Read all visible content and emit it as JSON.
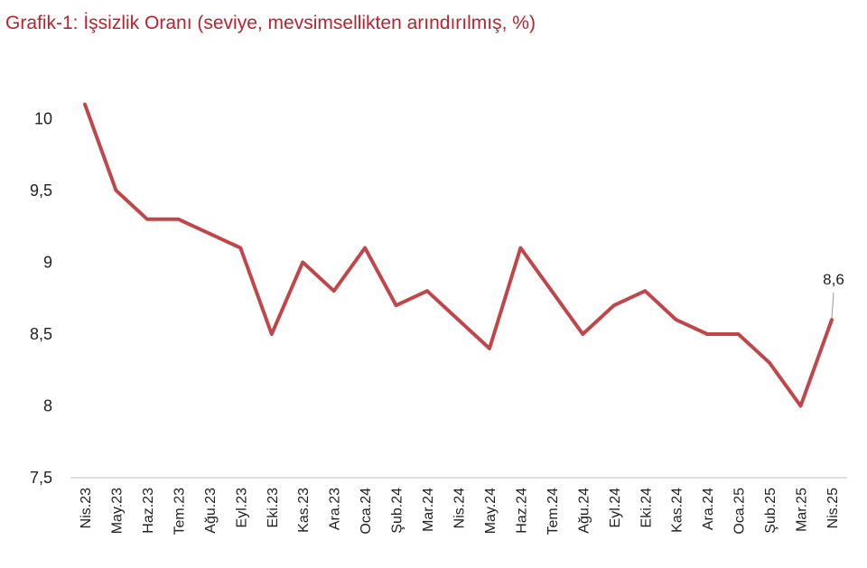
{
  "chart_data": {
    "type": "line",
    "title": "Grafik-1: İşsizlik Oranı (seviye, mevsimsellikten arındırılmış, %)",
    "xlabel": "",
    "ylabel": "",
    "ylim": [
      7.5,
      10.1
    ],
    "yticks": [
      {
        "value": 10,
        "label": "10"
      },
      {
        "value": 9.5,
        "label": "9,5"
      },
      {
        "value": 9,
        "label": "9"
      },
      {
        "value": 8.5,
        "label": "8,5"
      },
      {
        "value": 8,
        "label": "8"
      },
      {
        "value": 7.5,
        "label": "7,5"
      }
    ],
    "categories": [
      "Nis.23",
      "May.23",
      "Haz.23",
      "Tem.23",
      "Ağu.23",
      "Eyl.23",
      "Eki.23",
      "Kas.23",
      "Ara.23",
      "Oca.24",
      "Şub.24",
      "Mar.24",
      "Nis.24",
      "May.24",
      "Haz.24",
      "Tem.24",
      "Ağu.24",
      "Eyl.24",
      "Eki.24",
      "Kas.24",
      "Ara.24",
      "Oca.25",
      "Şub.25",
      "Mar.25",
      "Nis.25"
    ],
    "series": [
      {
        "values": [
          10.1,
          9.5,
          9.3,
          9.3,
          9.2,
          9.1,
          8.5,
          9.0,
          8.8,
          9.1,
          8.7,
          8.8,
          8.6,
          8.4,
          9.1,
          8.8,
          8.5,
          8.7,
          8.8,
          8.6,
          8.5,
          8.5,
          8.3,
          8.0,
          8.6
        ]
      }
    ],
    "data_labels": [
      {
        "index": 24,
        "text": "8,6"
      }
    ],
    "grid": false,
    "legend": "none",
    "line_color": "#c0464a"
  }
}
